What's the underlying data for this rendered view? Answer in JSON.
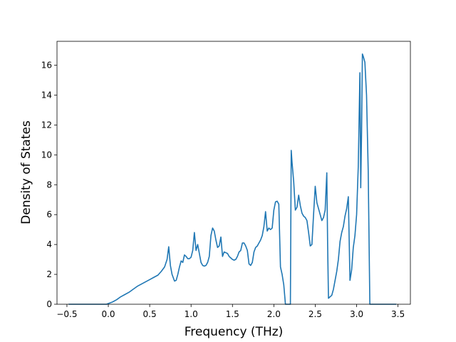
{
  "chart_data": {
    "type": "line",
    "title": "",
    "xlabel": "Frequency (THz)",
    "ylabel": "Density of States",
    "xlim": [
      -0.62,
      3.65
    ],
    "ylim": [
      0,
      17.6
    ],
    "xticks": [
      -0.5,
      0.0,
      0.5,
      1.0,
      1.5,
      2.0,
      2.5,
      3.0,
      3.5
    ],
    "xtick_labels": [
      "−0.5",
      "0.0",
      "0.5",
      "1.0",
      "1.5",
      "2.0",
      "2.5",
      "3.0",
      "3.5"
    ],
    "yticks": [
      0,
      2,
      4,
      6,
      8,
      10,
      12,
      14,
      16
    ],
    "ytick_labels": [
      "0",
      "2",
      "4",
      "6",
      "8",
      "10",
      "12",
      "14",
      "16"
    ],
    "grid": false,
    "legend": "none",
    "series": [
      {
        "color": "#1f77b4",
        "x": [
          -0.48,
          -0.3,
          -0.1,
          -0.02,
          0.0,
          0.05,
          0.1,
          0.15,
          0.2,
          0.25,
          0.3,
          0.35,
          0.4,
          0.45,
          0.5,
          0.55,
          0.6,
          0.64,
          0.68,
          0.71,
          0.73,
          0.75,
          0.77,
          0.8,
          0.82,
          0.84,
          0.86,
          0.88,
          0.9,
          0.92,
          0.94,
          0.96,
          0.98,
          1.0,
          1.02,
          1.04,
          1.06,
          1.08,
          1.1,
          1.12,
          1.14,
          1.16,
          1.18,
          1.2,
          1.22,
          1.24,
          1.26,
          1.28,
          1.3,
          1.32,
          1.34,
          1.36,
          1.38,
          1.4,
          1.42,
          1.44,
          1.46,
          1.48,
          1.5,
          1.52,
          1.54,
          1.56,
          1.58,
          1.6,
          1.62,
          1.64,
          1.66,
          1.68,
          1.7,
          1.72,
          1.74,
          1.76,
          1.78,
          1.8,
          1.82,
          1.84,
          1.86,
          1.88,
          1.9,
          1.92,
          1.94,
          1.96,
          1.98,
          2.0,
          2.02,
          2.04,
          2.06,
          2.08,
          2.1,
          2.12,
          2.14,
          2.16,
          2.18,
          2.19,
          2.2,
          2.21,
          2.22,
          2.24,
          2.26,
          2.28,
          2.3,
          2.32,
          2.34,
          2.36,
          2.38,
          2.4,
          2.42,
          2.44,
          2.46,
          2.48,
          2.5,
          2.52,
          2.54,
          2.56,
          2.58,
          2.6,
          2.62,
          2.64,
          2.65,
          2.66,
          2.68,
          2.7,
          2.72,
          2.74,
          2.76,
          2.78,
          2.8,
          2.82,
          2.84,
          2.86,
          2.88,
          2.9,
          2.92,
          2.94,
          2.96,
          2.98,
          3.0,
          3.02,
          3.04,
          3.05,
          3.06,
          3.07,
          3.08,
          3.1,
          3.12,
          3.14,
          3.16,
          3.2,
          3.3,
          3.4,
          3.48
        ],
        "y": [
          0.0,
          0.0,
          0.0,
          0.0,
          0.05,
          0.15,
          0.3,
          0.5,
          0.65,
          0.8,
          1.0,
          1.2,
          1.35,
          1.5,
          1.65,
          1.8,
          1.95,
          2.2,
          2.5,
          3.0,
          3.85,
          2.6,
          2.0,
          1.55,
          1.6,
          2.0,
          2.5,
          2.9,
          2.8,
          3.3,
          3.2,
          3.05,
          3.05,
          3.15,
          3.6,
          4.8,
          3.6,
          4.0,
          3.4,
          2.8,
          2.6,
          2.55,
          2.6,
          2.8,
          3.2,
          4.6,
          5.1,
          4.9,
          4.3,
          3.8,
          3.9,
          4.5,
          3.2,
          3.5,
          3.45,
          3.4,
          3.2,
          3.1,
          3.0,
          2.95,
          3.0,
          3.2,
          3.5,
          3.6,
          4.1,
          4.1,
          3.9,
          3.6,
          2.7,
          2.6,
          2.8,
          3.5,
          3.8,
          3.9,
          4.1,
          4.3,
          4.6,
          5.2,
          6.2,
          4.9,
          5.1,
          5.0,
          5.1,
          6.3,
          6.85,
          6.9,
          6.7,
          2.5,
          2.0,
          1.3,
          0.0,
          0.0,
          0.0,
          0.0,
          0.0,
          10.3,
          9.5,
          8.2,
          6.3,
          6.5,
          7.3,
          6.6,
          6.1,
          5.9,
          5.8,
          5.6,
          4.8,
          3.9,
          4.0,
          6.0,
          7.9,
          6.8,
          6.4,
          6.0,
          5.6,
          5.8,
          6.3,
          8.8,
          4.0,
          0.4,
          0.5,
          0.6,
          1.0,
          1.6,
          2.2,
          3.0,
          4.2,
          4.8,
          5.2,
          5.9,
          6.4,
          7.2,
          1.6,
          2.3,
          3.8,
          4.6,
          6.0,
          9.2,
          15.5,
          7.8,
          11.5,
          16.75,
          16.6,
          16.2,
          14.0,
          9.0,
          0.0,
          0.0,
          0.0,
          0.0,
          0.0
        ]
      }
    ]
  }
}
